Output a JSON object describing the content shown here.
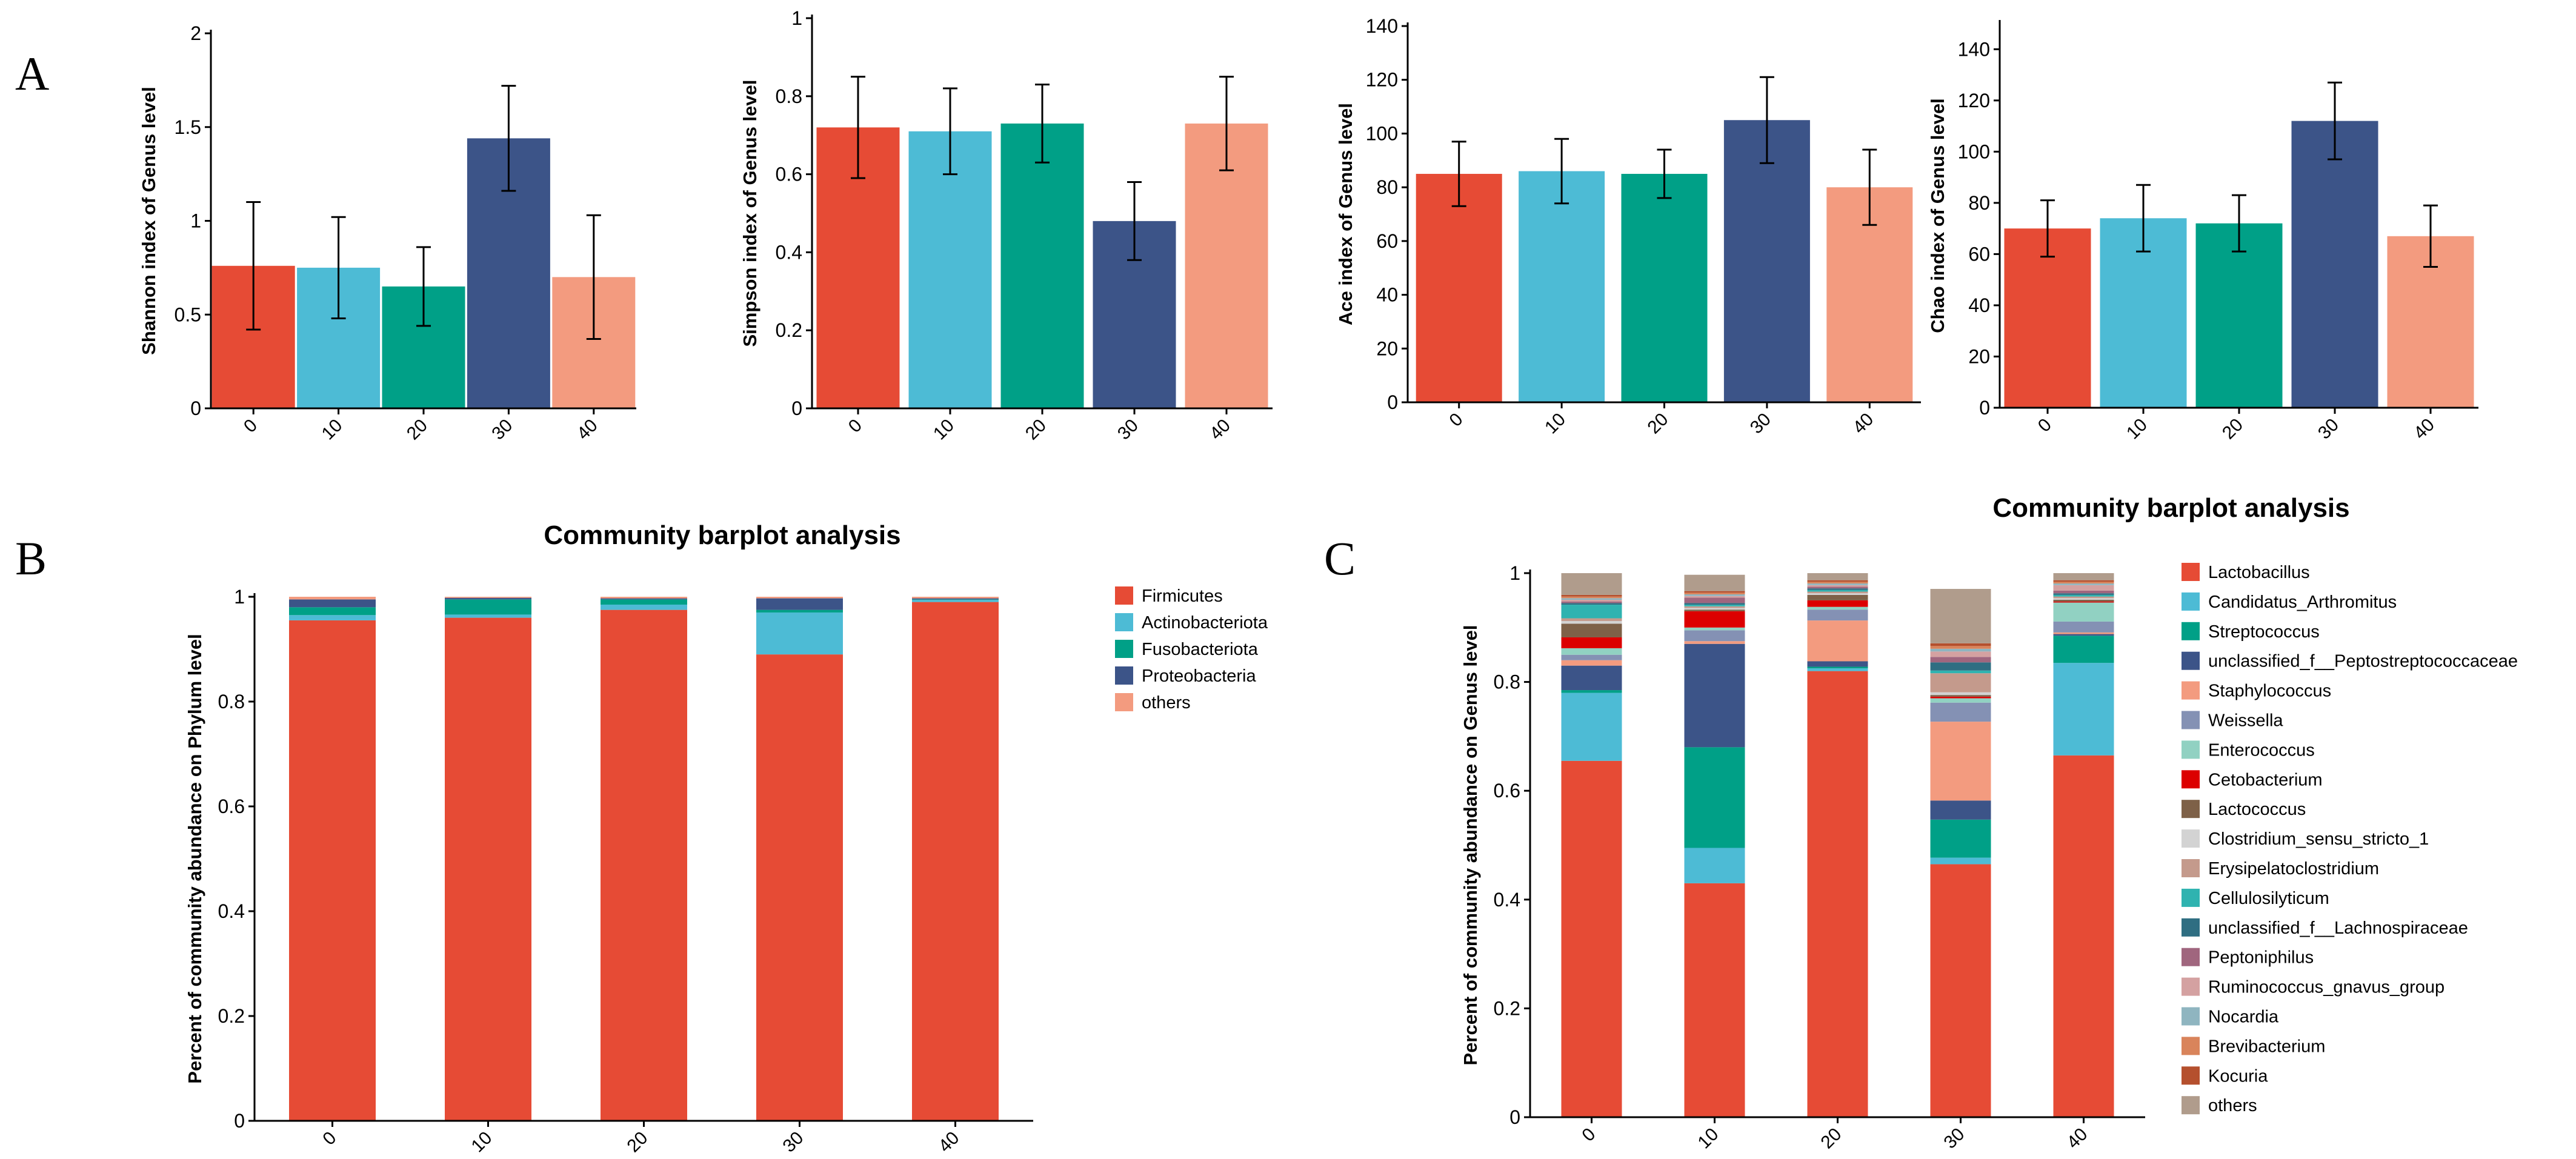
{
  "panel_labels": {
    "a": "A",
    "b": "B",
    "c": "C"
  },
  "colors": {
    "groups": [
      "#E64B35",
      "#4DBBD5",
      "#00A087",
      "#3C5488",
      "#F39B7F"
    ],
    "phylum": [
      "#E64B35",
      "#4DBBD5",
      "#00A087",
      "#3C5488",
      "#F39B7F"
    ],
    "genus": [
      "#E64B35",
      "#4DBBD5",
      "#00A087",
      "#3C5488",
      "#F39B7F",
      "#8491B4",
      "#91D1C2",
      "#DC0000",
      "#7E6148",
      "#D3D3D3",
      "#C49A8C",
      "#2FB3B0",
      "#2F6E82",
      "#A0667E",
      "#D4A1A1",
      "#8FB5C0",
      "#D9845B",
      "#B5502E",
      "#B09C8C"
    ]
  },
  "chart_data": [
    {
      "id": "shannon",
      "type": "bar",
      "title": "",
      "xlabel": "",
      "ylabel": "Shannon index of Genus level",
      "categories": [
        "0",
        "10",
        "20",
        "30",
        "40"
      ],
      "values": [
        0.76,
        0.75,
        0.65,
        1.44,
        0.7
      ],
      "errors": [
        0.34,
        0.27,
        0.21,
        0.28,
        0.33
      ],
      "ylim": [
        0,
        2
      ],
      "yticks": [
        "0",
        "0.5",
        "1",
        "1.5",
        "2"
      ],
      "ytick_values": [
        0,
        0.5,
        1,
        1.5,
        2
      ]
    },
    {
      "id": "simpson",
      "type": "bar",
      "title": "",
      "xlabel": "",
      "ylabel": "Simpson index of Genus level",
      "categories": [
        "0",
        "10",
        "20",
        "30",
        "40"
      ],
      "values": [
        0.72,
        0.71,
        0.73,
        0.48,
        0.73
      ],
      "errors": [
        0.13,
        0.11,
        0.1,
        0.1,
        0.12
      ],
      "ylim": [
        0,
        1
      ],
      "yticks": [
        "0",
        "0.2",
        "0.4",
        "0.6",
        "0.8",
        "1"
      ],
      "ytick_values": [
        0,
        0.2,
        0.4,
        0.6,
        0.8,
        1
      ]
    },
    {
      "id": "ace",
      "type": "bar",
      "title": "",
      "xlabel": "",
      "ylabel": "Ace index of Genus level",
      "categories": [
        "0",
        "10",
        "20",
        "30",
        "40"
      ],
      "values": [
        85,
        86,
        85,
        105,
        80
      ],
      "errors": [
        12,
        12,
        9,
        16,
        14
      ],
      "ylim": [
        0,
        140
      ],
      "yticks": [
        "0",
        "20",
        "40",
        "60",
        "80",
        "100",
        "120",
        "140"
      ],
      "ytick_values": [
        0,
        20,
        40,
        60,
        80,
        100,
        120,
        140
      ]
    },
    {
      "id": "chao",
      "type": "bar",
      "title": "",
      "xlabel": "",
      "ylabel": "Chao index of Genus level",
      "categories": [
        "0",
        "10",
        "20",
        "30",
        "40"
      ],
      "values": [
        70,
        74,
        72,
        112,
        67
      ],
      "errors": [
        11,
        13,
        11,
        15,
        12
      ],
      "ylim": [
        0,
        150
      ],
      "yticks": [
        "0",
        "20",
        "40",
        "60",
        "80",
        "100",
        "120",
        "140"
      ],
      "ytick_values": [
        0,
        20,
        40,
        60,
        80,
        100,
        120,
        140
      ]
    },
    {
      "id": "phylum",
      "type": "bar",
      "stacked": true,
      "title": "Community barplot analysis",
      "xlabel": "",
      "ylabel": "Percent of community abundance on Phylum level",
      "categories": [
        "0",
        "10",
        "20",
        "30",
        "40"
      ],
      "ylim": [
        0,
        1
      ],
      "yticks": [
        "0",
        "0.2",
        "0.4",
        "0.6",
        "0.8",
        "1"
      ],
      "ytick_values": [
        0,
        0.2,
        0.4,
        0.6,
        0.8,
        1
      ],
      "series": [
        {
          "name": "Firmicutes",
          "values": [
            0.955,
            0.96,
            0.975,
            0.89,
            0.99
          ]
        },
        {
          "name": "Actinobacteriota",
          "values": [
            0.01,
            0.006,
            0.01,
            0.08,
            0.004
          ]
        },
        {
          "name": "Fusobacteriota",
          "values": [
            0.015,
            0.029,
            0.01,
            0.005,
            0.001
          ]
        },
        {
          "name": "Proteobacteria",
          "values": [
            0.015,
            0.003,
            0.002,
            0.022,
            0.002
          ]
        },
        {
          "name": "others",
          "values": [
            0.005,
            0.002,
            0.003,
            0.003,
            0.003
          ]
        }
      ]
    },
    {
      "id": "genus",
      "type": "bar",
      "stacked": true,
      "title": "Community barplot analysis",
      "xlabel": "",
      "ylabel": "Percent of community abundance on Genus level",
      "categories": [
        "0",
        "10",
        "20",
        "30",
        "40"
      ],
      "ylim": [
        0,
        1
      ],
      "yticks": [
        "0",
        "0.2",
        "0.4",
        "0.6",
        "0.8",
        "1"
      ],
      "ytick_values": [
        0,
        0.2,
        0.4,
        0.6,
        0.8,
        1
      ],
      "series": [
        {
          "name": "Lactobacillus",
          "values": [
            0.655,
            0.43,
            0.82,
            0.465,
            0.665
          ]
        },
        {
          "name": "Candidatus_Arthromitus",
          "values": [
            0.125,
            0.065,
            0.005,
            0.012,
            0.17
          ]
        },
        {
          "name": "Streptococcus",
          "values": [
            0.005,
            0.185,
            0.003,
            0.07,
            0.05
          ]
        },
        {
          "name": "unclassified_f__Peptostreptococcaceae",
          "values": [
            0.045,
            0.19,
            0.01,
            0.035,
            0.003
          ]
        },
        {
          "name": "Staphylococcus",
          "values": [
            0.01,
            0.005,
            0.075,
            0.145,
            0.003
          ]
        },
        {
          "name": "Weissella",
          "values": [
            0.01,
            0.02,
            0.02,
            0.035,
            0.02
          ]
        },
        {
          "name": "Enterococcus",
          "values": [
            0.012,
            0.005,
            0.005,
            0.008,
            0.035
          ]
        },
        {
          "name": "Cetobacterium",
          "values": [
            0.02,
            0.03,
            0.012,
            0.003,
            0.002
          ]
        },
        {
          "name": "Lactococcus",
          "values": [
            0.025,
            0.003,
            0.01,
            0.003,
            0.003
          ]
        },
        {
          "name": "Clostridium_sensu_stricto_1",
          "values": [
            0.005,
            0.003,
            0.003,
            0.005,
            0.003
          ]
        },
        {
          "name": "Erysipelatoclostridium",
          "values": [
            0.005,
            0.003,
            0.003,
            0.035,
            0.003
          ]
        },
        {
          "name": "Cellulosilyticum",
          "values": [
            0.025,
            0.003,
            0.003,
            0.005,
            0.003
          ]
        },
        {
          "name": "unclassified_f__Lachnospiraceae",
          "values": [
            0.003,
            0.003,
            0.003,
            0.015,
            0.003
          ]
        },
        {
          "name": "Peptoniphilus",
          "values": [
            0.003,
            0.01,
            0.003,
            0.01,
            0.005
          ]
        },
        {
          "name": "Ruminococcus_gnavus_group",
          "values": [
            0.003,
            0.003,
            0.003,
            0.01,
            0.01
          ]
        },
        {
          "name": "Nocardia",
          "values": [
            0.003,
            0.003,
            0.003,
            0.005,
            0.003
          ]
        },
        {
          "name": "Brevibacterium",
          "values": [
            0.003,
            0.003,
            0.003,
            0.005,
            0.003
          ]
        },
        {
          "name": "Kocuria",
          "values": [
            0.003,
            0.003,
            0.003,
            0.005,
            0.003
          ]
        },
        {
          "name": "others",
          "values": [
            0.04,
            0.03,
            0.02,
            0.1,
            0.015
          ]
        }
      ]
    }
  ]
}
